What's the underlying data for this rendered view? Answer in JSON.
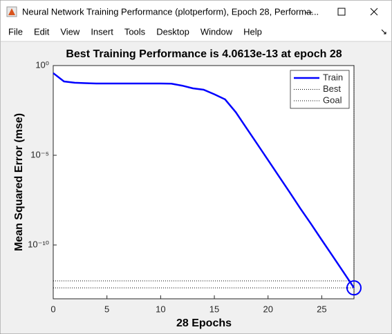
{
  "window": {
    "title": "Neural Network Training Performance (plotperform), Epoch 28, Performa...",
    "menu": [
      "File",
      "Edit",
      "View",
      "Insert",
      "Tools",
      "Desktop",
      "Window",
      "Help"
    ]
  },
  "chart_data": {
    "type": "line",
    "title": "Best Training Performance is 4.0613e-13 at epoch 28",
    "x_label": "28 Epochs",
    "y_label": "Mean Squared Error  (mse)",
    "x": [
      0,
      1,
      2,
      3,
      4,
      5,
      6,
      7,
      8,
      9,
      10,
      11,
      12,
      13,
      14,
      15,
      16,
      17,
      18,
      19,
      20,
      21,
      22,
      23,
      24,
      25,
      26,
      27,
      28
    ],
    "series": [
      {
        "name": "Train",
        "color": "#0000ff",
        "values": [
          0.38,
          0.13,
          0.11,
          0.105,
          0.1,
          0.1,
          0.1,
          0.1,
          0.1,
          0.1,
          0.1,
          0.098,
          0.076,
          0.054,
          0.045,
          0.025,
          0.013,
          0.0025,
          0.00032,
          4.2e-05,
          5.4e-06,
          6.9e-07,
          8.9e-08,
          1.1e-08,
          1.5e-09,
          1.9e-10,
          2.5e-11,
          3.2e-12,
          4.0613e-13
        ]
      }
    ],
    "best": {
      "name": "Best",
      "epoch": 28,
      "value": 4.0613e-13,
      "color": "#000000"
    },
    "goal": {
      "name": "Goal",
      "value": 1e-12,
      "color": "#000000"
    },
    "xlim": [
      0,
      28
    ],
    "ylim": [
      1e-13,
      1
    ],
    "xticks": [
      0,
      5,
      10,
      15,
      20,
      25
    ],
    "yticks": [
      {
        "value": 1,
        "label": "10⁰"
      },
      {
        "value": 1e-05,
        "label": "10⁻⁵"
      },
      {
        "value": 1e-10,
        "label": "10⁻¹⁰"
      }
    ],
    "log_y": true,
    "legend": "upper right"
  }
}
